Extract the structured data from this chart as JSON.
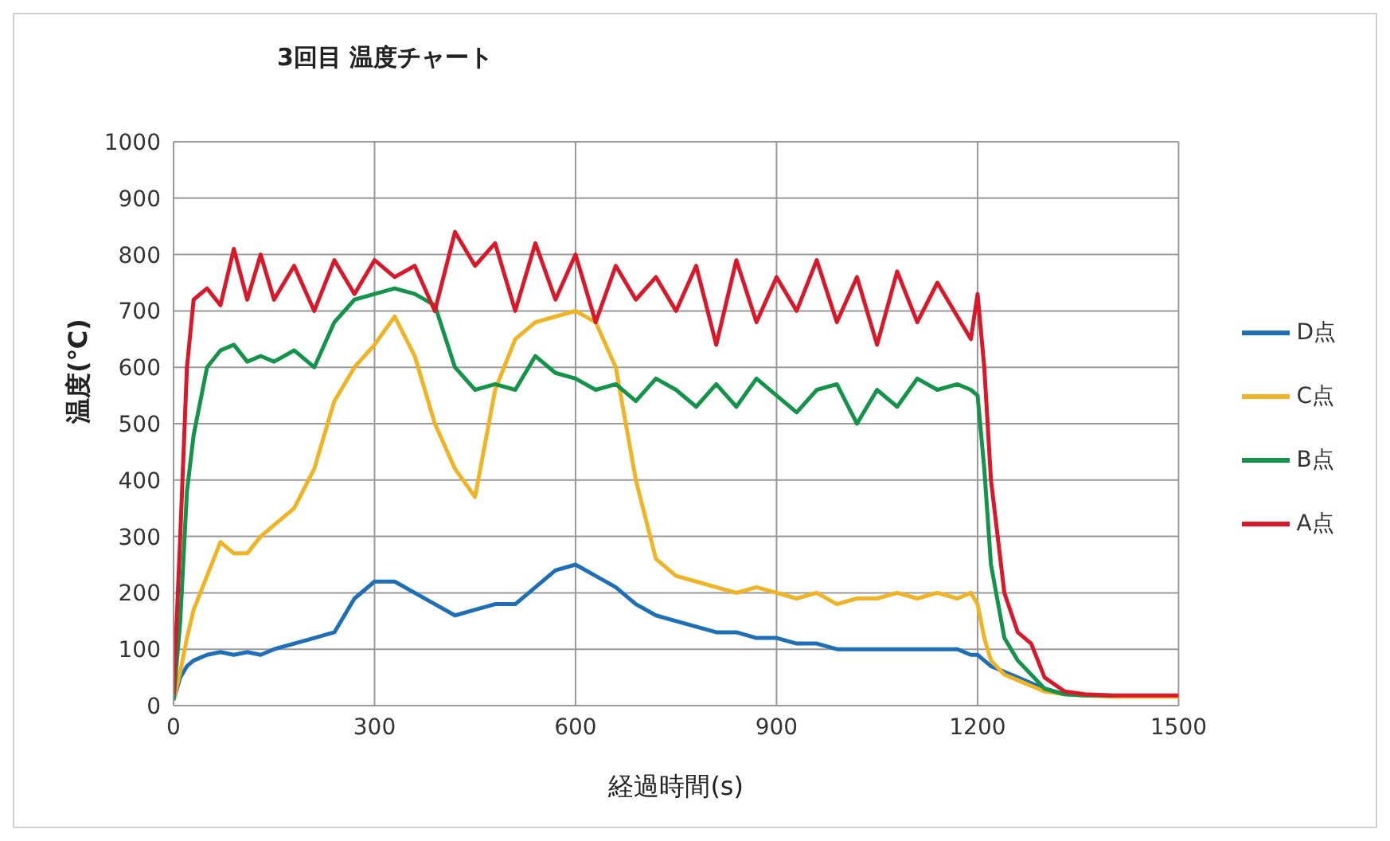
{
  "chart_data": {
    "type": "line",
    "title": "3回目 温度チャート",
    "xlabel": "経過時間(s)",
    "ylabel": "温度(℃)",
    "x": [
      0,
      10,
      20,
      30,
      50,
      70,
      90,
      110,
      130,
      150,
      180,
      210,
      240,
      270,
      300,
      330,
      360,
      390,
      420,
      450,
      480,
      510,
      540,
      570,
      600,
      630,
      660,
      690,
      720,
      750,
      780,
      810,
      840,
      870,
      900,
      930,
      960,
      990,
      1020,
      1050,
      1080,
      1110,
      1140,
      1170,
      1190,
      1200,
      1210,
      1220,
      1240,
      1260,
      1280,
      1300,
      1330,
      1360,
      1400,
      1450,
      1500
    ],
    "series": [
      {
        "name": "D点",
        "color": "#1f6fb8",
        "values": [
          10,
          50,
          70,
          80,
          90,
          95,
          90,
          95,
          90,
          100,
          110,
          120,
          130,
          190,
          220,
          220,
          200,
          180,
          160,
          170,
          180,
          180,
          210,
          240,
          250,
          230,
          210,
          180,
          160,
          150,
          140,
          130,
          130,
          120,
          120,
          110,
          110,
          100,
          100,
          100,
          100,
          100,
          100,
          100,
          90,
          90,
          80,
          70,
          60,
          50,
          40,
          30,
          20,
          null,
          null,
          null,
          null
        ]
      },
      {
        "name": "C点",
        "color": "#f0b323",
        "values": [
          10,
          60,
          120,
          170,
          230,
          290,
          270,
          270,
          300,
          320,
          350,
          420,
          540,
          600,
          640,
          690,
          620,
          500,
          420,
          370,
          560,
          650,
          680,
          690,
          700,
          680,
          600,
          400,
          260,
          230,
          220,
          210,
          200,
          210,
          200,
          190,
          200,
          180,
          190,
          190,
          200,
          190,
          200,
          190,
          200,
          180,
          120,
          80,
          55,
          45,
          35,
          25,
          20,
          18,
          16,
          16,
          16
        ]
      },
      {
        "name": "B点",
        "color": "#13944a",
        "values": [
          10,
          150,
          380,
          480,
          600,
          630,
          640,
          610,
          620,
          610,
          630,
          600,
          680,
          720,
          730,
          740,
          730,
          710,
          600,
          560,
          570,
          560,
          620,
          590,
          580,
          560,
          570,
          540,
          580,
          560,
          530,
          570,
          530,
          580,
          550,
          520,
          560,
          570,
          500,
          560,
          530,
          580,
          560,
          570,
          560,
          550,
          420,
          250,
          120,
          80,
          55,
          30,
          20,
          18,
          18,
          null,
          null
        ]
      },
      {
        "name": "A点",
        "color": "#d9182a",
        "values": [
          20,
          300,
          600,
          720,
          740,
          710,
          810,
          720,
          800,
          720,
          780,
          700,
          790,
          730,
          790,
          760,
          780,
          700,
          840,
          780,
          820,
          700,
          820,
          720,
          800,
          680,
          780,
          720,
          760,
          700,
          780,
          640,
          790,
          680,
          760,
          700,
          790,
          680,
          760,
          640,
          770,
          680,
          750,
          690,
          650,
          730,
          600,
          400,
          200,
          130,
          110,
          50,
          25,
          20,
          18,
          18,
          18
        ]
      }
    ],
    "xlim": [
      0,
      1500
    ],
    "xticks": [
      0,
      300,
      600,
      900,
      1200,
      1500
    ],
    "ylim": [
      0,
      1000
    ],
    "yticks": [
      0,
      100,
      200,
      300,
      400,
      500,
      600,
      700,
      800,
      900,
      1000
    ],
    "grid": true,
    "legend": "right",
    "marker": "none",
    "line_style": "solid"
  }
}
